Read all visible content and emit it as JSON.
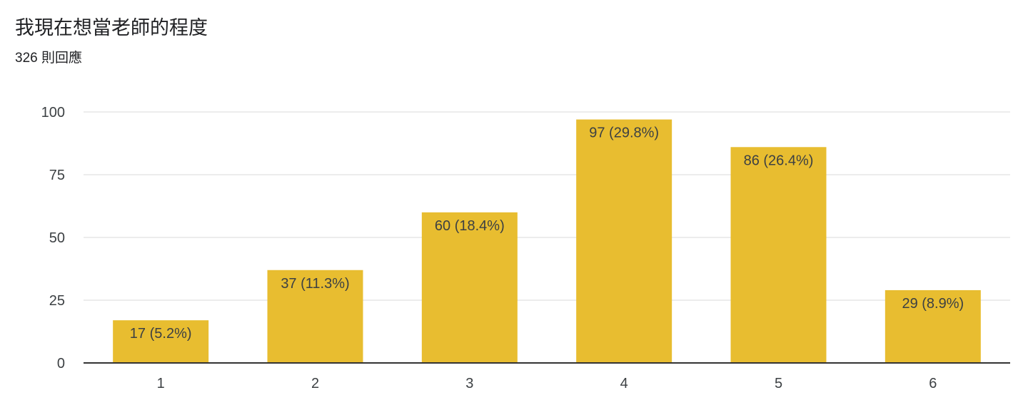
{
  "header": {
    "title": "我現在想當老師的程度",
    "response_count": "326 則回應"
  },
  "colors": {
    "bar": "#e8bd30",
    "grid": "#e6e6e6",
    "axis": "#333333"
  },
  "chart_data": {
    "type": "bar",
    "categories": [
      "1",
      "2",
      "3",
      "4",
      "5",
      "6"
    ],
    "values": [
      17,
      37,
      60,
      97,
      86,
      29
    ],
    "data_labels": [
      "17 (5.2%)",
      "37 (11.3%)",
      "60 (18.4%)",
      "97 (29.8%)",
      "86 (26.4%)",
      "29 (8.9%)"
    ],
    "yticks": [
      0,
      25,
      50,
      75,
      100
    ],
    "ylim": [
      0,
      100
    ],
    "grid": true,
    "legend": "none",
    "title": "我現在想當老師的程度",
    "subtitle": "326 則回應",
    "xlabel": "",
    "ylabel": ""
  }
}
